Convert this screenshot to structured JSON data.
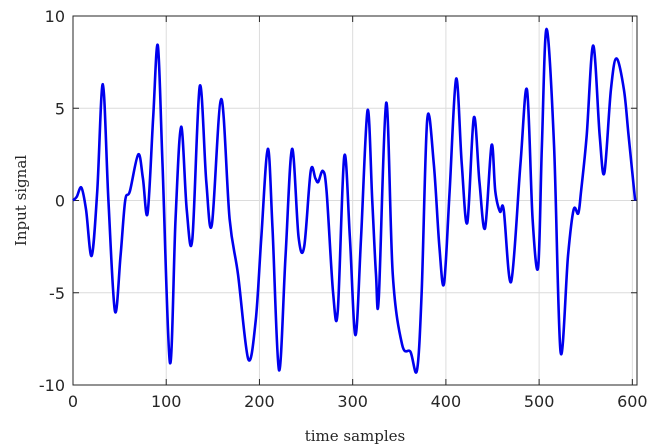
{
  "chart_data": {
    "type": "line",
    "xlabel": "time samples",
    "ylabel": "Input signal",
    "xlim": [
      0,
      605
    ],
    "ylim": [
      -10,
      10
    ],
    "xticks": [
      0,
      100,
      200,
      300,
      400,
      500,
      600
    ],
    "yticks": [
      -10,
      -5,
      0,
      5,
      10
    ],
    "xtick_labels": [
      "0",
      "100",
      "200",
      "300",
      "400",
      "500",
      "600"
    ],
    "ytick_labels": [
      "-10",
      "-5",
      "0",
      "5",
      "10"
    ],
    "grid": true,
    "line_color": "#0000ee",
    "series": [
      {
        "x": [
          0,
          4,
          9,
          14,
          20,
          26,
          32,
          38,
          45,
          51,
          56,
          61,
          70,
          75,
          80,
          86,
          91,
          96,
          104,
          110,
          116,
          122,
          128,
          136,
          143,
          149,
          159,
          168,
          177,
          188,
          196,
          202,
          209,
          214,
          221,
          228,
          235,
          242,
          248,
          255,
          260,
          263,
          268,
          272,
          279,
          284,
          291,
          297,
          303,
          309,
          316,
          321,
          325,
          328,
          336,
          343,
          353,
          362,
          369,
          374,
          380,
          387,
          393,
          398,
          404,
          411,
          417,
          423,
          430,
          436,
          442,
          449,
          453,
          458,
          462,
          470,
          480,
          487,
          493,
          499,
          503,
          508,
          516,
          523,
          531,
          537,
          542,
          545,
          551,
          558,
          565,
          570,
          577,
          583,
          591,
          596,
          603
        ],
        "y": [
          0.0,
          0.2,
          0.7,
          -0.5,
          -3.0,
          0.5,
          6.3,
          0.0,
          -6.0,
          -3.0,
          0.0,
          0.5,
          2.5,
          1.2,
          -0.7,
          4.5,
          8.4,
          2.0,
          -8.8,
          -1.0,
          4.0,
          -0.5,
          -2.1,
          6.2,
          1.0,
          -1.3,
          5.5,
          -1.0,
          -4.0,
          -8.6,
          -6.5,
          -2.0,
          2.8,
          -1.5,
          -9.2,
          -3.0,
          2.8,
          -2.0,
          -2.5,
          1.6,
          1.2,
          1.0,
          1.6,
          0.5,
          -5.0,
          -6.0,
          2.4,
          -2.0,
          -7.3,
          -2.0,
          4.9,
          0.0,
          -4.0,
          -5.3,
          5.3,
          -4.0,
          -7.8,
          -8.2,
          -9.2,
          -5.0,
          4.4,
          2.0,
          -2.5,
          -4.5,
          0.5,
          6.6,
          2.0,
          -1.2,
          4.5,
          1.0,
          -1.5,
          3.0,
          0.5,
          -0.6,
          -0.5,
          -4.4,
          2.0,
          6.0,
          -1.0,
          -3.6,
          3.0,
          9.3,
          3.0,
          -8.2,
          -3.0,
          -0.5,
          -0.7,
          0.5,
          3.5,
          8.4,
          3.5,
          1.5,
          6.0,
          7.7,
          6.0,
          3.5,
          0.0
        ]
      }
    ]
  }
}
